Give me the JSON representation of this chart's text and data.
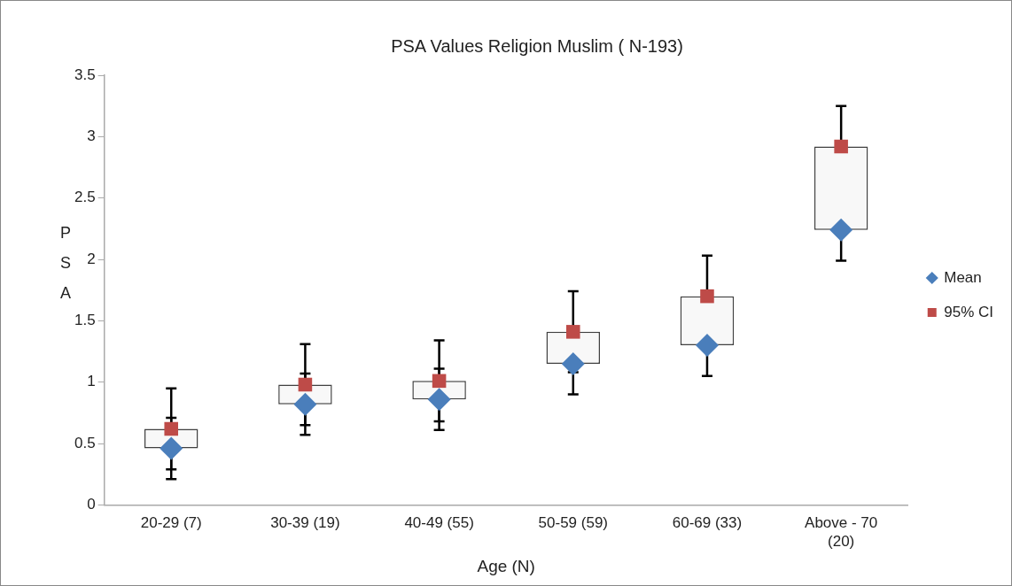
{
  "chart_data": {
    "type": "scatter",
    "title": "PSA Values Religion Muslim ( N-193)",
    "xlabel": "Age (N)",
    "ylabel": "PSA",
    "categories": [
      "20-29 (7)",
      "30-39 (19)",
      "40-49 (55)",
      "50-59 (59)",
      "60-69 (33)",
      "Above - 70 (20)"
    ],
    "ylim": [
      0,
      3.5
    ],
    "yticks": [
      0,
      0.5,
      1,
      1.5,
      2,
      2.5,
      3,
      3.5
    ],
    "grid": false,
    "legend": "right",
    "series": [
      {
        "type": "bar",
        "color": "#f8f8f8",
        "base": [
          0.46,
          0.82,
          0.86,
          1.15,
          1.3,
          2.24
        ],
        "values": [
          0.16,
          0.16,
          0.15,
          0.26,
          0.4,
          0.68
        ]
      },
      {
        "name": "Mean",
        "color": "#4a7ebb",
        "marker": "diamond",
        "values": [
          0.46,
          0.82,
          0.86,
          1.15,
          1.3,
          2.24
        ],
        "errors": [
          0.25,
          0.25,
          0.25,
          0.25,
          0.25,
          0.25
        ]
      },
      {
        "name": "95% CI",
        "color": "#be4b48",
        "marker": "square",
        "values": [
          0.62,
          0.98,
          1.01,
          1.41,
          1.7,
          2.92
        ],
        "errors": [
          0.33,
          0.33,
          0.33,
          0.33,
          0.33,
          0.33
        ]
      }
    ]
  }
}
